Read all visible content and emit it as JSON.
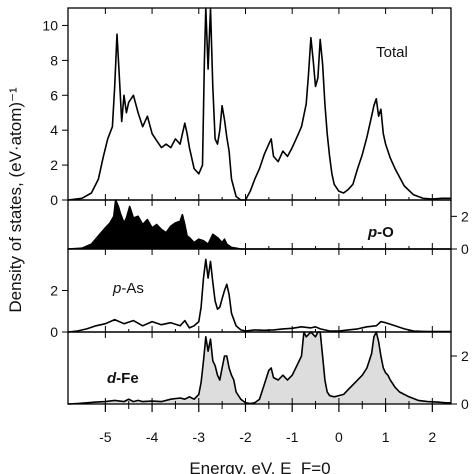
{
  "chart_data": {
    "type": "line",
    "xlabel": "Energy, eV, E_F=0",
    "ylabel": "Density of states, (eV·atom)⁻¹",
    "xlim": [
      -5.8,
      2.4
    ],
    "x_ticks": [
      -5,
      -4,
      -3,
      -2,
      -1,
      0,
      1,
      2
    ],
    "x_tick_labels": [
      "-5",
      "-4",
      "-3",
      "-2",
      "-1",
      "0",
      "1",
      "2"
    ],
    "grid": false,
    "panels": [
      {
        "name": "Total",
        "label": "Total",
        "ylim": [
          0,
          11
        ],
        "y_ticks": [
          0,
          2,
          4,
          6,
          8,
          10
        ],
        "y_tick_labels": [
          "0",
          "2",
          "4",
          "6",
          "8",
          "10"
        ],
        "tick_side": "left",
        "series": [
          {
            "name": "Total",
            "fill": "none",
            "x": [
              -5.8,
              -5.5,
              -5.3,
              -5.15,
              -5.05,
              -4.95,
              -4.85,
              -4.8,
              -4.75,
              -4.7,
              -4.65,
              -4.6,
              -4.55,
              -4.5,
              -4.4,
              -4.3,
              -4.2,
              -4.1,
              -4.0,
              -3.9,
              -3.8,
              -3.7,
              -3.6,
              -3.5,
              -3.4,
              -3.3,
              -3.25,
              -3.2,
              -3.1,
              -3.0,
              -2.92,
              -2.88,
              -2.85,
              -2.8,
              -2.75,
              -2.7,
              -2.65,
              -2.6,
              -2.55,
              -2.5,
              -2.45,
              -2.4,
              -2.35,
              -2.3,
              -2.2,
              -2.1,
              -2.0,
              -1.9,
              -1.8,
              -1.7,
              -1.6,
              -1.5,
              -1.45,
              -1.4,
              -1.3,
              -1.2,
              -1.1,
              -1.0,
              -0.9,
              -0.8,
              -0.7,
              -0.65,
              -0.6,
              -0.55,
              -0.5,
              -0.45,
              -0.4,
              -0.35,
              -0.3,
              -0.25,
              -0.2,
              -0.15,
              -0.1,
              0.0,
              0.1,
              0.2,
              0.3,
              0.4,
              0.5,
              0.6,
              0.7,
              0.75,
              0.8,
              0.85,
              0.9,
              0.95,
              1.0,
              1.1,
              1.2,
              1.4,
              1.6,
              1.8,
              2.0,
              2.2,
              2.4
            ],
            "y": [
              0,
              0.1,
              0.4,
              1.2,
              2.4,
              3.5,
              4.2,
              6.5,
              9.5,
              7.0,
              4.5,
              6.0,
              5.0,
              5.6,
              6.0,
              5.0,
              4.2,
              4.8,
              3.8,
              3.4,
              3.0,
              3.2,
              3.0,
              3.5,
              3.2,
              4.4,
              3.8,
              3.0,
              1.8,
              1.5,
              2.0,
              8.0,
              11,
              7.5,
              11,
              6.5,
              3.5,
              3.2,
              4.0,
              5.4,
              4.6,
              3.6,
              2.8,
              1.2,
              0.2,
              0,
              0,
              0.5,
              1.2,
              1.8,
              2.6,
              3.2,
              3.5,
              2.5,
              2.2,
              2.8,
              2.5,
              3.0,
              3.6,
              4.2,
              5.5,
              7.2,
              9.3,
              8.0,
              6.5,
              7.0,
              9.2,
              7.8,
              5.5,
              3.8,
              2.5,
              1.5,
              0.9,
              0.5,
              0.4,
              0.6,
              0.9,
              1.8,
              2.6,
              3.6,
              4.8,
              5.4,
              5.8,
              4.8,
              5.2,
              3.8,
              3.2,
              2.4,
              1.8,
              0.8,
              0.3,
              0.1,
              0.05,
              0.1,
              0.1
            ]
          }
        ]
      },
      {
        "name": "p-O",
        "label_italic": "p",
        "label_rest": "-O",
        "ylim": [
          0,
          3
        ],
        "y_ticks": [
          0,
          2
        ],
        "y_tick_labels": [
          "0",
          "2"
        ],
        "tick_side": "right",
        "series": [
          {
            "name": "p-O",
            "fill": "#000000",
            "x": [
              -5.8,
              -5.5,
              -5.3,
              -5.15,
              -5.0,
              -4.9,
              -4.82,
              -4.78,
              -4.72,
              -4.68,
              -4.6,
              -4.55,
              -4.48,
              -4.4,
              -4.3,
              -4.2,
              -4.1,
              -4.0,
              -3.9,
              -3.8,
              -3.7,
              -3.6,
              -3.5,
              -3.4,
              -3.35,
              -3.3,
              -3.25,
              -3.2,
              -3.1,
              -3.0,
              -2.9,
              -2.8,
              -2.7,
              -2.6,
              -2.5,
              -2.45,
              -2.4,
              -2.3,
              -2.2,
              -2.1,
              -2.0,
              -1.5,
              -1.0,
              -0.5,
              0.0,
              0.5,
              1.0,
              1.5,
              2.0,
              2.4
            ],
            "y": [
              0,
              0.05,
              0.3,
              0.8,
              1.3,
              1.6,
              2.0,
              3.2,
              2.6,
              2.2,
              1.6,
              1.9,
              2.6,
              1.9,
              2.0,
              1.5,
              1.8,
              1.3,
              1.5,
              1.2,
              1.0,
              1.4,
              1.6,
              1.7,
              2.1,
              1.5,
              0.8,
              0.7,
              0.4,
              0.6,
              0.5,
              0.3,
              0.9,
              0.7,
              0.4,
              0.6,
              0.3,
              0.1,
              0.05,
              0,
              0,
              0,
              0,
              0,
              0,
              0,
              0,
              0,
              0,
              0
            ]
          }
        ]
      },
      {
        "name": "p-As",
        "label_italic": "p",
        "label_rest": "-As",
        "ylim": [
          0,
          4
        ],
        "y_ticks": [
          0,
          2
        ],
        "y_tick_labels": [
          "0",
          "2"
        ],
        "tick_side": "left",
        "series": [
          {
            "name": "p-As",
            "fill": "none",
            "x": [
              -5.8,
              -5.6,
              -5.4,
              -5.2,
              -5.0,
              -4.8,
              -4.6,
              -4.4,
              -4.2,
              -4.0,
              -3.8,
              -3.6,
              -3.4,
              -3.3,
              -3.2,
              -3.1,
              -3.0,
              -2.95,
              -2.9,
              -2.85,
              -2.8,
              -2.75,
              -2.7,
              -2.65,
              -2.6,
              -2.55,
              -2.5,
              -2.45,
              -2.4,
              -2.35,
              -2.3,
              -2.2,
              -2.1,
              -2.0,
              -1.8,
              -1.6,
              -1.4,
              -1.2,
              -1.0,
              -0.8,
              -0.6,
              -0.5,
              -0.4,
              -0.3,
              -0.2,
              0.0,
              0.2,
              0.4,
              0.6,
              0.8,
              0.9,
              1.0,
              1.2,
              1.4,
              1.6,
              1.8,
              2.0,
              2.2,
              2.4
            ],
            "y": [
              0,
              0.05,
              0.15,
              0.3,
              0.4,
              0.6,
              0.4,
              0.55,
              0.3,
              0.5,
              0.35,
              0.45,
              0.3,
              0.55,
              0.2,
              0.3,
              0.5,
              1.2,
              2.6,
              3.5,
              2.6,
              3.4,
              2.4,
              1.5,
              1.1,
              1.2,
              1.6,
              2.0,
              2.3,
              1.8,
              0.9,
              0.3,
              0.1,
              0.05,
              0.1,
              0.08,
              0.1,
              0.15,
              0.18,
              0.25,
              0.2,
              0.25,
              0.15,
              0.1,
              0.05,
              0.05,
              0.1,
              0.15,
              0.25,
              0.3,
              0.5,
              0.45,
              0.3,
              0.15,
              0.05,
              0.03,
              0.02,
              0.02,
              0.02
            ]
          }
        ]
      },
      {
        "name": "d-Fe",
        "label_italic": "d",
        "label_rest": "-Fe",
        "ylim": [
          0,
          3
        ],
        "y_ticks": [
          0,
          2
        ],
        "y_tick_labels": [
          "0",
          "2"
        ],
        "tick_side": "right",
        "series": [
          {
            "name": "d-Fe",
            "fill": "#dddddd",
            "x": [
              -5.8,
              -5.6,
              -5.4,
              -5.2,
              -5.0,
              -4.8,
              -4.6,
              -4.5,
              -4.4,
              -4.3,
              -4.2,
              -4.0,
              -3.8,
              -3.6,
              -3.4,
              -3.3,
              -3.2,
              -3.1,
              -3.0,
              -2.95,
              -2.9,
              -2.85,
              -2.8,
              -2.75,
              -2.7,
              -2.65,
              -2.6,
              -2.55,
              -2.5,
              -2.45,
              -2.4,
              -2.35,
              -2.3,
              -2.25,
              -2.2,
              -2.1,
              -2.0,
              -1.9,
              -1.8,
              -1.7,
              -1.6,
              -1.5,
              -1.45,
              -1.4,
              -1.3,
              -1.2,
              -1.1,
              -1.0,
              -0.9,
              -0.8,
              -0.75,
              -0.7,
              -0.65,
              -0.6,
              -0.55,
              -0.5,
              -0.45,
              -0.4,
              -0.35,
              -0.3,
              -0.25,
              -0.2,
              -0.1,
              0.0,
              0.1,
              0.2,
              0.3,
              0.4,
              0.5,
              0.6,
              0.7,
              0.75,
              0.8,
              0.85,
              0.9,
              0.95,
              1.0,
              1.05,
              1.1,
              1.2,
              1.3,
              1.5,
              1.7,
              1.9,
              2.1,
              2.3,
              2.4
            ],
            "y": [
              0,
              0.02,
              0.05,
              0.08,
              0.1,
              0.15,
              0.1,
              0.2,
              0.1,
              0.15,
              0.1,
              0.12,
              0.1,
              0.2,
              0.25,
              0.2,
              0.3,
              0.2,
              0.4,
              0.9,
              1.8,
              2.8,
              2.2,
              2.7,
              1.8,
              1.6,
              1.2,
              1.0,
              1.5,
              2.0,
              2.0,
              1.5,
              1.2,
              1.0,
              0.5,
              0.2,
              0.05,
              0.02,
              0.05,
              0.2,
              0.8,
              1.4,
              1.5,
              1.1,
              1.0,
              1.2,
              1.0,
              1.2,
              1.6,
              2.0,
              3.0,
              2.8,
              2.9,
              3.0,
              2.9,
              2.8,
              3.0,
              3.0,
              2.0,
              1.0,
              0.5,
              0.35,
              0.3,
              0.35,
              0.4,
              0.6,
              0.8,
              1.0,
              1.2,
              1.5,
              2.1,
              2.8,
              3.0,
              2.6,
              2.0,
              1.5,
              1.3,
              1.2,
              1.0,
              0.7,
              0.5,
              0.3,
              0.15,
              0.1,
              0.08,
              0.05,
              0.05
            ]
          }
        ]
      }
    ]
  }
}
